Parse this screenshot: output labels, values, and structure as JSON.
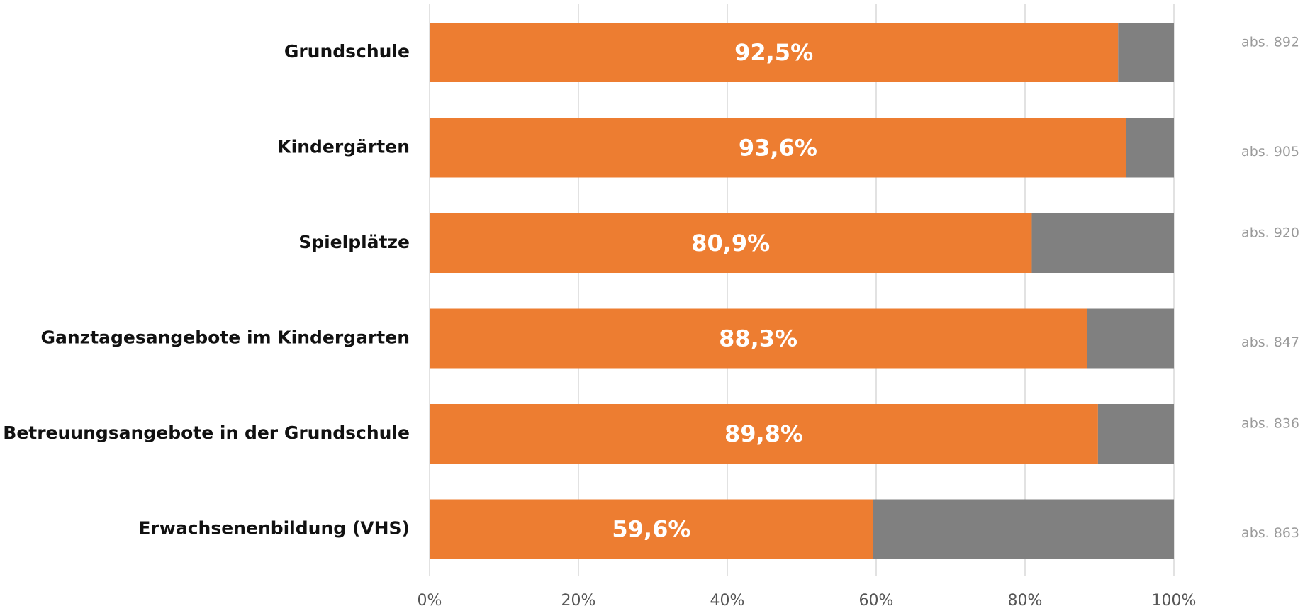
{
  "chart_data": {
    "type": "bar",
    "orientation": "horizontal",
    "stacked": true,
    "categories": [
      "Grundschule",
      "Kindergärten",
      "Spielplätze",
      "Ganztagesangebote im Kindergarten",
      "Betreuungsangebote in der Grundschule",
      "Erwachsenenbildung (VHS)"
    ],
    "series": [
      {
        "color": "#ed7d31",
        "values": [
          92.5,
          93.6,
          80.9,
          88.3,
          89.8,
          59.6
        ],
        "value_labels": [
          "92,5%",
          "93,6%",
          "80,9%",
          "88,3%",
          "89,8%",
          "59,6%"
        ]
      },
      {
        "color": "#808080",
        "values": [
          7.5,
          6.4,
          19.1,
          11.7,
          10.2,
          40.4
        ]
      }
    ],
    "annotations": [
      "abs. 892",
      "abs. 905",
      "abs. 920",
      "abs. 847",
      "abs. 836",
      "abs. 863"
    ],
    "xlim": [
      0,
      100
    ],
    "xticks": [
      {
        "value": 0,
        "label": "0%"
      },
      {
        "value": 20,
        "label": "20%"
      },
      {
        "value": 40,
        "label": "40%"
      },
      {
        "value": 60,
        "label": "60%"
      },
      {
        "value": 80,
        "label": "80%"
      },
      {
        "value": 100,
        "label": "100%"
      }
    ],
    "grid": true
  }
}
